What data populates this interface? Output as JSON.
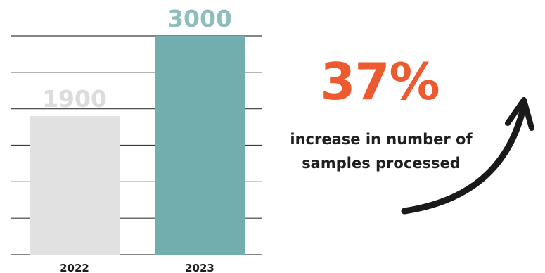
{
  "chart_data": {
    "type": "bar",
    "categories": [
      "2022",
      "2023"
    ],
    "values": [
      1900,
      3000
    ],
    "data_labels": [
      "1900",
      "3000"
    ],
    "colors": [
      "#e1e1e1",
      "#72aead"
    ],
    "label_colors": [
      "#dcdcdc",
      "#8fbdbd"
    ],
    "ylim": [
      0,
      3000
    ],
    "grid": true,
    "title": "",
    "xlabel": "",
    "ylabel": ""
  },
  "callout": {
    "percent": "37%",
    "caption_line1": "increase in number of",
    "caption_line2": "samples processed",
    "accent_color": "#ee5a2f",
    "icon": "arrow-up-curve-icon"
  }
}
